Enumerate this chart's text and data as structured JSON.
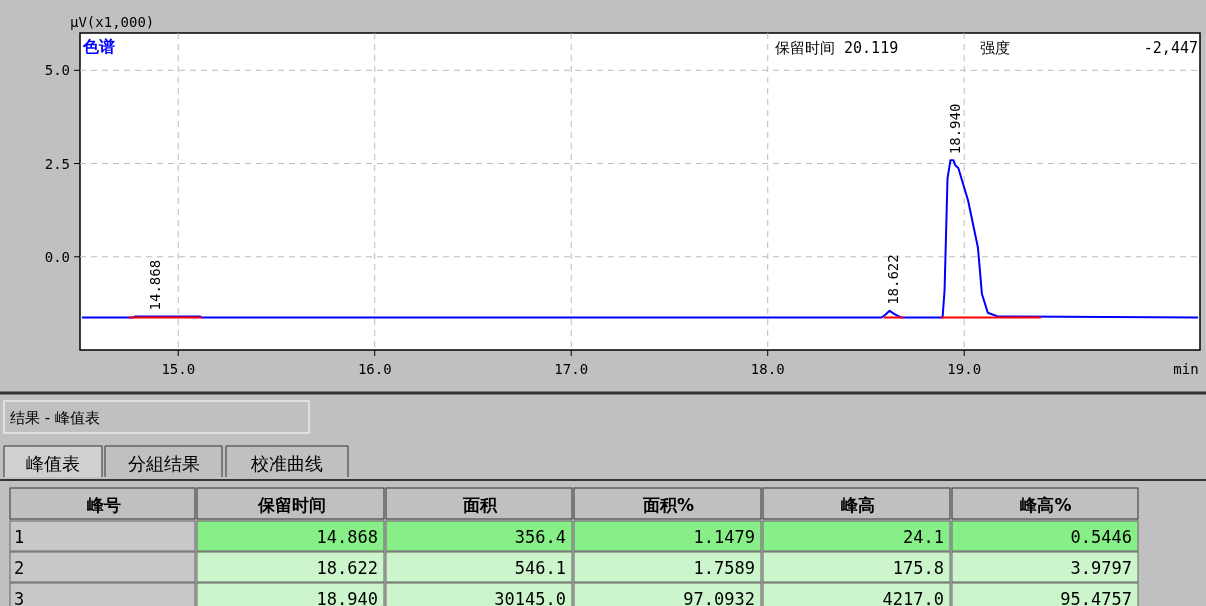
{
  "chart_data": {
    "type": "line",
    "ylabel": "μV(x1,000)",
    "xlabel": "min",
    "xlim": [
      14.5,
      20.2
    ],
    "xticks": [
      {
        "value": 15,
        "label": "15.0"
      },
      {
        "value": 16,
        "label": "16.0"
      },
      {
        "value": 17,
        "label": "17.0"
      },
      {
        "value": 18,
        "label": "18.0"
      },
      {
        "value": 19,
        "label": "19.0"
      }
    ],
    "ylim": [
      -2.5,
      6.0
    ],
    "yticks": [
      {
        "value": 0,
        "label": "0.0"
      },
      {
        "value": 2.5,
        "label": "2.5"
      },
      {
        "value": 5,
        "label": "5.0"
      }
    ],
    "grid": true,
    "marker": "none",
    "line_style": "solid",
    "series": [
      {
        "color": "#0000ff",
        "x": [
          14.51,
          14.77,
          14.78,
          15.11,
          15.12,
          18.58,
          18.6,
          18.62,
          18.65,
          18.68,
          18.89,
          18.9,
          18.915,
          18.93,
          18.945,
          18.955,
          18.97,
          19.02,
          19.07,
          19.09,
          19.12,
          19.17,
          20.19
        ],
        "values": [
          -1.63,
          -1.63,
          -1.6,
          -1.6,
          -1.63,
          -1.63,
          -1.55,
          -1.45,
          -1.55,
          -1.63,
          -1.63,
          -0.9,
          2.1,
          2.59,
          2.59,
          2.45,
          2.38,
          1.5,
          0.24,
          -0.99,
          -1.5,
          -1.6,
          -1.63
        ]
      },
      {
        "color": "#ff0000",
        "x": [
          14.75,
          15.12,
          null,
          18.59,
          18.69,
          null,
          18.88,
          19.39
        ],
        "values": [
          -1.63,
          -1.63,
          null,
          -1.63,
          -1.63,
          null,
          -1.63,
          -1.63
        ]
      }
    ],
    "annotations": [
      "色谱",
      "保留时间 20.119",
      "强度",
      "-2,447",
      "结果 - 峰值表",
      "峰值表",
      "分組结果",
      "校准曲线",
      "峰号",
      "保留时间",
      "面积",
      "面积%",
      "峰高",
      "峰高%",
      "1",
      "14.868",
      "356.4",
      "1.1479",
      "24.1",
      "0.5446",
      "2",
      "18.622",
      "546.1",
      "1.7589",
      "175.8",
      "3.9797",
      "3",
      "18.940",
      "30145.0",
      "97.0932",
      "4217.0",
      "95.4757",
      {
        "text": "14.868",
        "x": 14.868,
        "y": -1.6
      },
      {
        "text": "18.622",
        "x": 18.622,
        "y": -1.45
      },
      {
        "text": "18.940",
        "x": 18.94,
        "y": 2.59
      }
    ]
  }
}
